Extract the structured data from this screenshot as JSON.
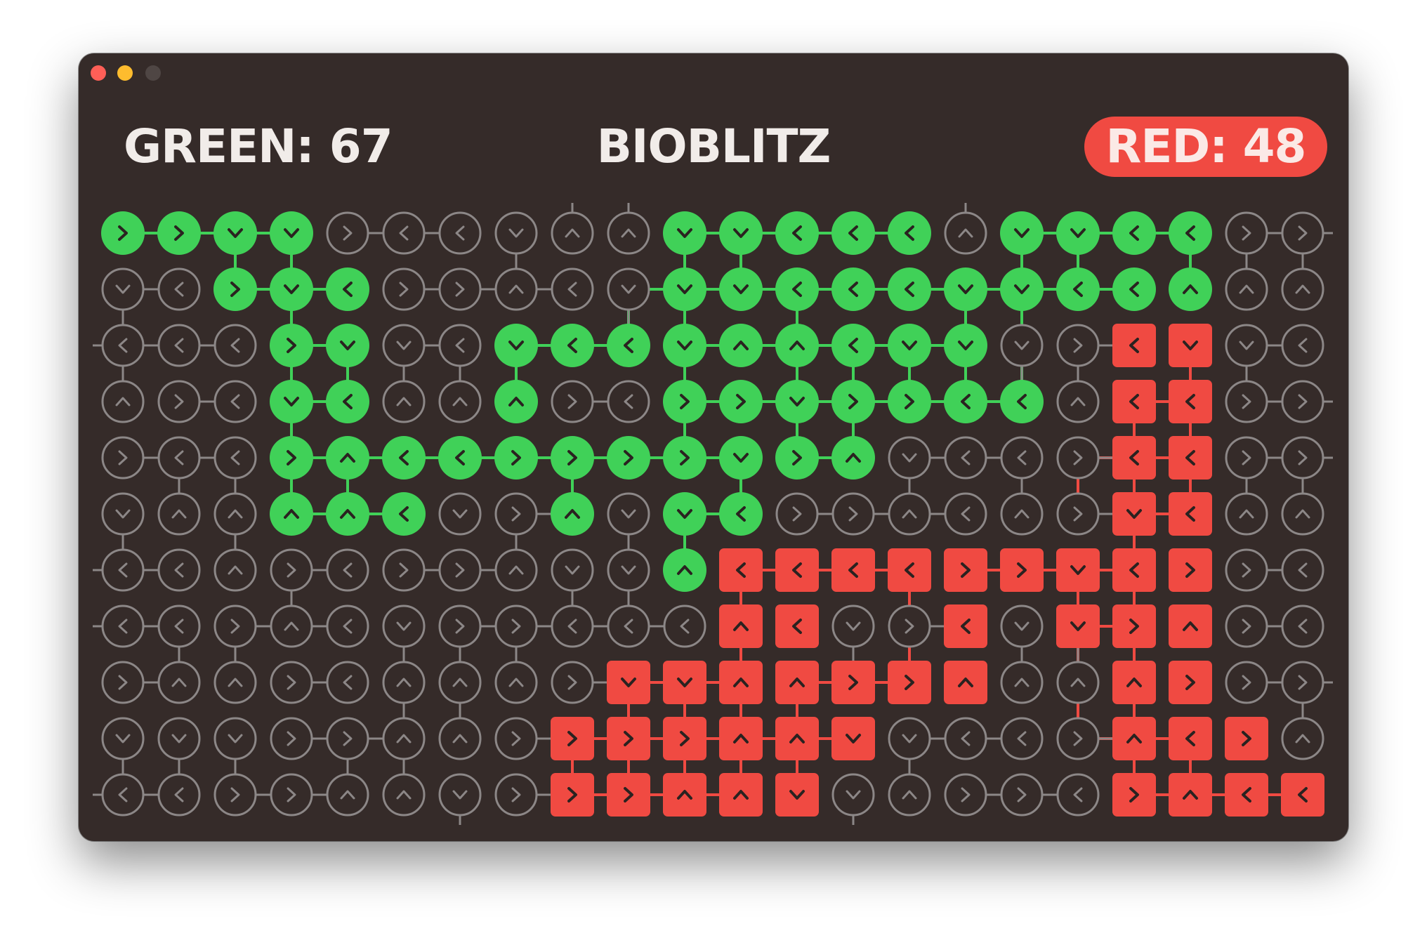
{
  "header": {
    "green_score": "GREEN: 67",
    "title": "BIOBLITZ",
    "red_score": "RED: 48"
  },
  "colors": {
    "window_bg": "#352b29",
    "green": "#40d158",
    "red": "#f04a42",
    "empty_outline": "#8c8787",
    "glyph_dark": "#2a2220"
  },
  "board": {
    "cols": 22,
    "rows": 11,
    "legend": "G=green circle, R=red square, E=empty circle; direction letters R=right L=left U=up D=down",
    "owner": [
      "GGGGEEEEEEGGGGGEGGGGEE",
      "EEGGGEEEEEGGGGGGGGGGEE",
      "EEEGGEEGGGGGGGGGEERREE",
      "EEEGGEEGEEGGGGGGGERREE",
      "EEEGGGGGGGGGGGEEEERREE",
      "EEEGGGEEGEGGEEEEEERREE",
      "EEEEEEEEEEGRRRRRRRRREE",
      "EEEEEEEEEEERREERERRREE",
      "EEEEEEEEERRRRRRREERREE",
      "EEEEEEEERRRRRREEEERRRE",
      "EEEEEEEERRRRREEEEERRRR"
    ],
    "dirs": [
      "RRDDRLLDUUDDLLLUDDLLRR",
      "DLRDLRRULDDDLLLDDLLUUU",
      "LLLRDDLDLLDUULDDDRLDDL",
      "URLDLUUURLRRDRRLLULLRR",
      "RLLRULLRRRRDRUDLLRLLRR",
      "DUUUUL RUDDLRRULURDLUU",
      "LLURLRRUDDULLLLRRDLRRL",
      "LLRULDRRLLLULDRLDDRURL",
      "RUURLUUURDDUURRUUUURRR",
      "DDDRRUURRRRUUDDLLRULRU",
      "LLRRUUDRRRUUDDURRLRULL"
    ],
    "links": [
      "G0,0-G0,1",
      "G0,1-G0,2",
      "G0,2-G0,3",
      "G0,2-G1,2",
      "G0,3-G1,3",
      "G1,2-G1,3",
      "G1,3-G1,4",
      "G1,3-G2,3",
      "G2,3-G2,4",
      "G2,3-G3,3",
      "G3,3-G3,4",
      "G2,4-G3,4",
      "G3,3-G4,3",
      "G4,3-G5,3",
      "G4,3-G4,4",
      "G4,4-G5,4",
      "G4,4-G4,5",
      "G4,5-G4,6",
      "G4,6-G4,7",
      "G0,10-G0,11",
      "G0,11-G0,12",
      "G0,12-G0,13",
      "G0,13-G0,14",
      "G0,10-G1,10",
      "G0,11-G1,11",
      "G1,9-G1,10",
      "G1,10-G1,11",
      "G1,11-G1,12",
      "G1,12-G1,13",
      "G1,13-G1,14",
      "G1,14-G1,15",
      "G0,16-G1,16",
      "G0,16-G0,17",
      "G0,17-G0,18",
      "G0,18-G0,19",
      "G0,17-G1,17",
      "G0,19-G1,19",
      "G1,16-G1,17",
      "G1,17-G1,18",
      "G1,15-G1,16",
      "G1,15-G2,15",
      "G1,16-G2,16",
      "G1,12-G2,12",
      "G1,10-G2,10",
      "G1,9-G2,9",
      "G2,7-G2,8",
      "G2,8-G2,9",
      "G2,7-G3,7",
      "G2,10-G2,11",
      "G2,11-G2,12",
      "G2,12-G2,13",
      "G2,13-G2,14",
      "G2,14-G2,15",
      "G2,10-G3,10",
      "G2,12-G3,12",
      "G2,13-G3,13",
      "G2,14-G3,14",
      "G2,15-G3,15",
      "G2,16-G3,16",
      "G3,10-G3,11",
      "G3,11-G3,12",
      "G3,12-G3,13",
      "G3,13-G3,14",
      "G3,14-G3,15",
      "G3,15-G3,16",
      "G3,12-G4,12",
      "G3,13-G4,13",
      "G4,7-G4,8",
      "G4,8-G4,9",
      "G4,9-G4,10",
      "G4,10-G4,11",
      "G4,12-G4,13",
      "G4,8-G5,8",
      "G4,11-G5,11",
      "G5,10-G5,11",
      "G5,10-G6,10",
      "G3,10-G4,10",
      "G5,3-G5,4",
      "G5,4-G5,5",
      "G2,3-G3,3",
      "R2,19-R3,19",
      "R3,18-R3,19",
      "R3,18-R4,18",
      "R3,19-R4,19",
      "R4,17-R4,18",
      "R4,18-R4,19",
      "R4,17-R5,17",
      "R4,18-R5,18",
      "R4,19-R5,19",
      "R5,18-R5,19",
      "R5,18-R6,18",
      "R6,11-R6,12",
      "R6,12-R6,13",
      "R6,13-R6,14",
      "R6,15-R6,16",
      "R6,16-R6,17",
      "R6,17-R6,18",
      "R6,11-R7,11",
      "R6,17-R7,17",
      "R6,18-R7,18",
      "R6,14-R7,14",
      "R7,17-R7,18",
      "R7,17-R8,17",
      "R7,18-R8,18",
      "R7,11-R8,11",
      "R7,14-R8,14",
      "R8,9-R8,10",
      "R8,10-R8,11",
      "R8,12-R8,13",
      "R8,13-R8,14",
      "R8,9-R9,9",
      "R8,10-R9,10",
      "R8,11-R9,11",
      "R8,12-R9,12",
      "R8,17-R9,17",
      "R8,18-R9,18",
      "R9,8-R9,9",
      "R9,9-R9,10",
      "R9,10-R9,11",
      "R9,11-R9,12",
      "R9,17-R9,18",
      "R9,18-R9,19",
      "R9,8-R10,8",
      "R9,9-R10,9",
      "R9,11-R10,11",
      "R9,12-R10,12",
      "R9,18-R10,18",
      "R9,19-R10,19",
      "R10,8-R10,9",
      "R10,9-R10,10",
      "R10,10-R10,11",
      "R10,18-R10,19",
      "R10,19-R10,20",
      "R10,20-R10,21",
      "R9,10-R10,10",
      "R9,12-R9,13"
    ]
  }
}
